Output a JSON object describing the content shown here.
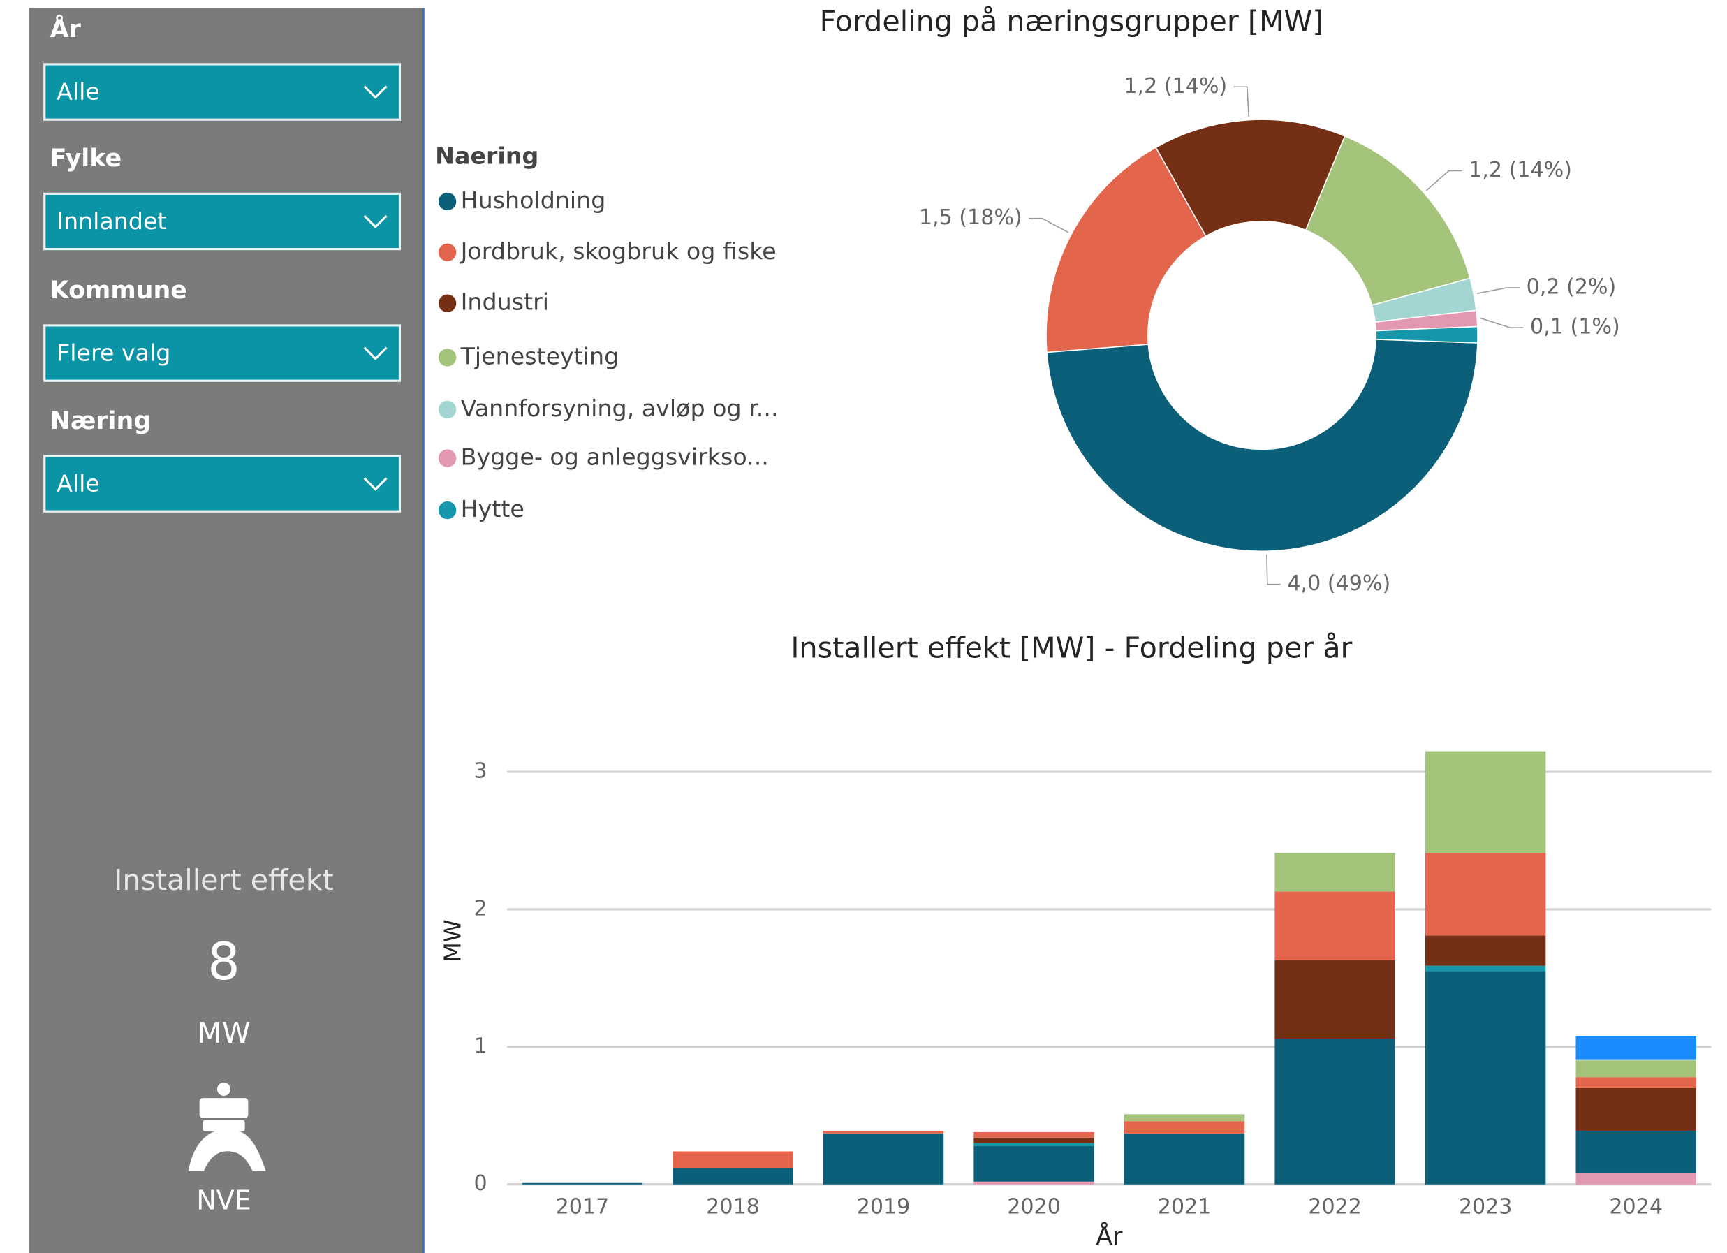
{
  "filters": [
    {
      "label": "År",
      "value": "Alle"
    },
    {
      "label": "Fylke",
      "value": "Innlandet"
    },
    {
      "label": "Kommune",
      "value": "Flere valg"
    },
    {
      "label": "Næring",
      "value": "Alle"
    }
  ],
  "kpi": {
    "title": "Installert effekt",
    "value": 8,
    "unit": "MW",
    "logo": "NVE"
  },
  "chart_data": [
    {
      "type": "donut",
      "title": "Fordeling på næringsgrupper [MW]",
      "legend_title": "Naering",
      "categories": [
        "Husholdning",
        "Jordbruk, skogbruk og fiske",
        "Industri",
        "Tjenesteyting",
        "Vannforsyning, avløp og r...",
        "Bygge- og anleggsvirkso...",
        "Hytte"
      ],
      "values": [
        4.0,
        1.5,
        1.2,
        1.2,
        0.2,
        0.1,
        0.1
      ],
      "value_labels": [
        "4,0 (49%)",
        "1,5 (18%)",
        "1,2 (14%)",
        "1,2 (14%)",
        "0,2 (2%)",
        "0,1 (1%)",
        null
      ],
      "colors": [
        "#0b5f78",
        "#e3664c",
        "#752f15",
        "#a4c37b",
        "#a3d5d2",
        "#e398b2",
        "#1697ab"
      ]
    },
    {
      "type": "bar",
      "stacked": true,
      "title": "Installert effekt [MW] - Fordeling per år",
      "x_label": "År",
      "y_label": "MW",
      "categories": [
        "2017",
        "2018",
        "2019",
        "2020",
        "2021",
        "2022",
        "2023",
        "2024"
      ],
      "series": [
        {
          "name": "Bygge- og anleggsvirkso...",
          "color": "#e398b2",
          "values": [
            0,
            0,
            0,
            0.02,
            0,
            0,
            0,
            0.08
          ]
        },
        {
          "name": "Husholdning",
          "color": "#0b5f78",
          "values": [
            0.01,
            0.12,
            0.37,
            0.26,
            0.37,
            1.06,
            1.55,
            0.31
          ]
        },
        {
          "name": "Hytte",
          "color": "#1697ab",
          "values": [
            0,
            0,
            0,
            0.02,
            0,
            0,
            0.04,
            0
          ]
        },
        {
          "name": "Industri",
          "color": "#752f15",
          "values": [
            0,
            0,
            0,
            0.04,
            0,
            0.57,
            0.22,
            0.31
          ]
        },
        {
          "name": "Jordbruk, skogbruk og fiske",
          "color": "#e3664c",
          "values": [
            0,
            0.12,
            0.02,
            0.04,
            0.09,
            0.5,
            0.6,
            0.08
          ]
        },
        {
          "name": "Tjenesteyting",
          "color": "#a4c37b",
          "values": [
            0,
            0,
            0,
            0,
            0.05,
            0.28,
            0.74,
            0.12
          ]
        },
        {
          "name": "Vannforsyning, avløp og r...",
          "color": "#a3d5d2",
          "values": [
            0,
            0,
            0,
            0,
            0,
            0,
            0,
            0.01
          ]
        },
        {
          "name": null,
          "color": "#1a8cff",
          "values": [
            0,
            0,
            0,
            0,
            0,
            0,
            0,
            0.17
          ]
        }
      ],
      "ylim": [
        0,
        3.3
      ],
      "yticks": [
        0,
        1,
        2,
        3
      ],
      "grid": true
    }
  ]
}
